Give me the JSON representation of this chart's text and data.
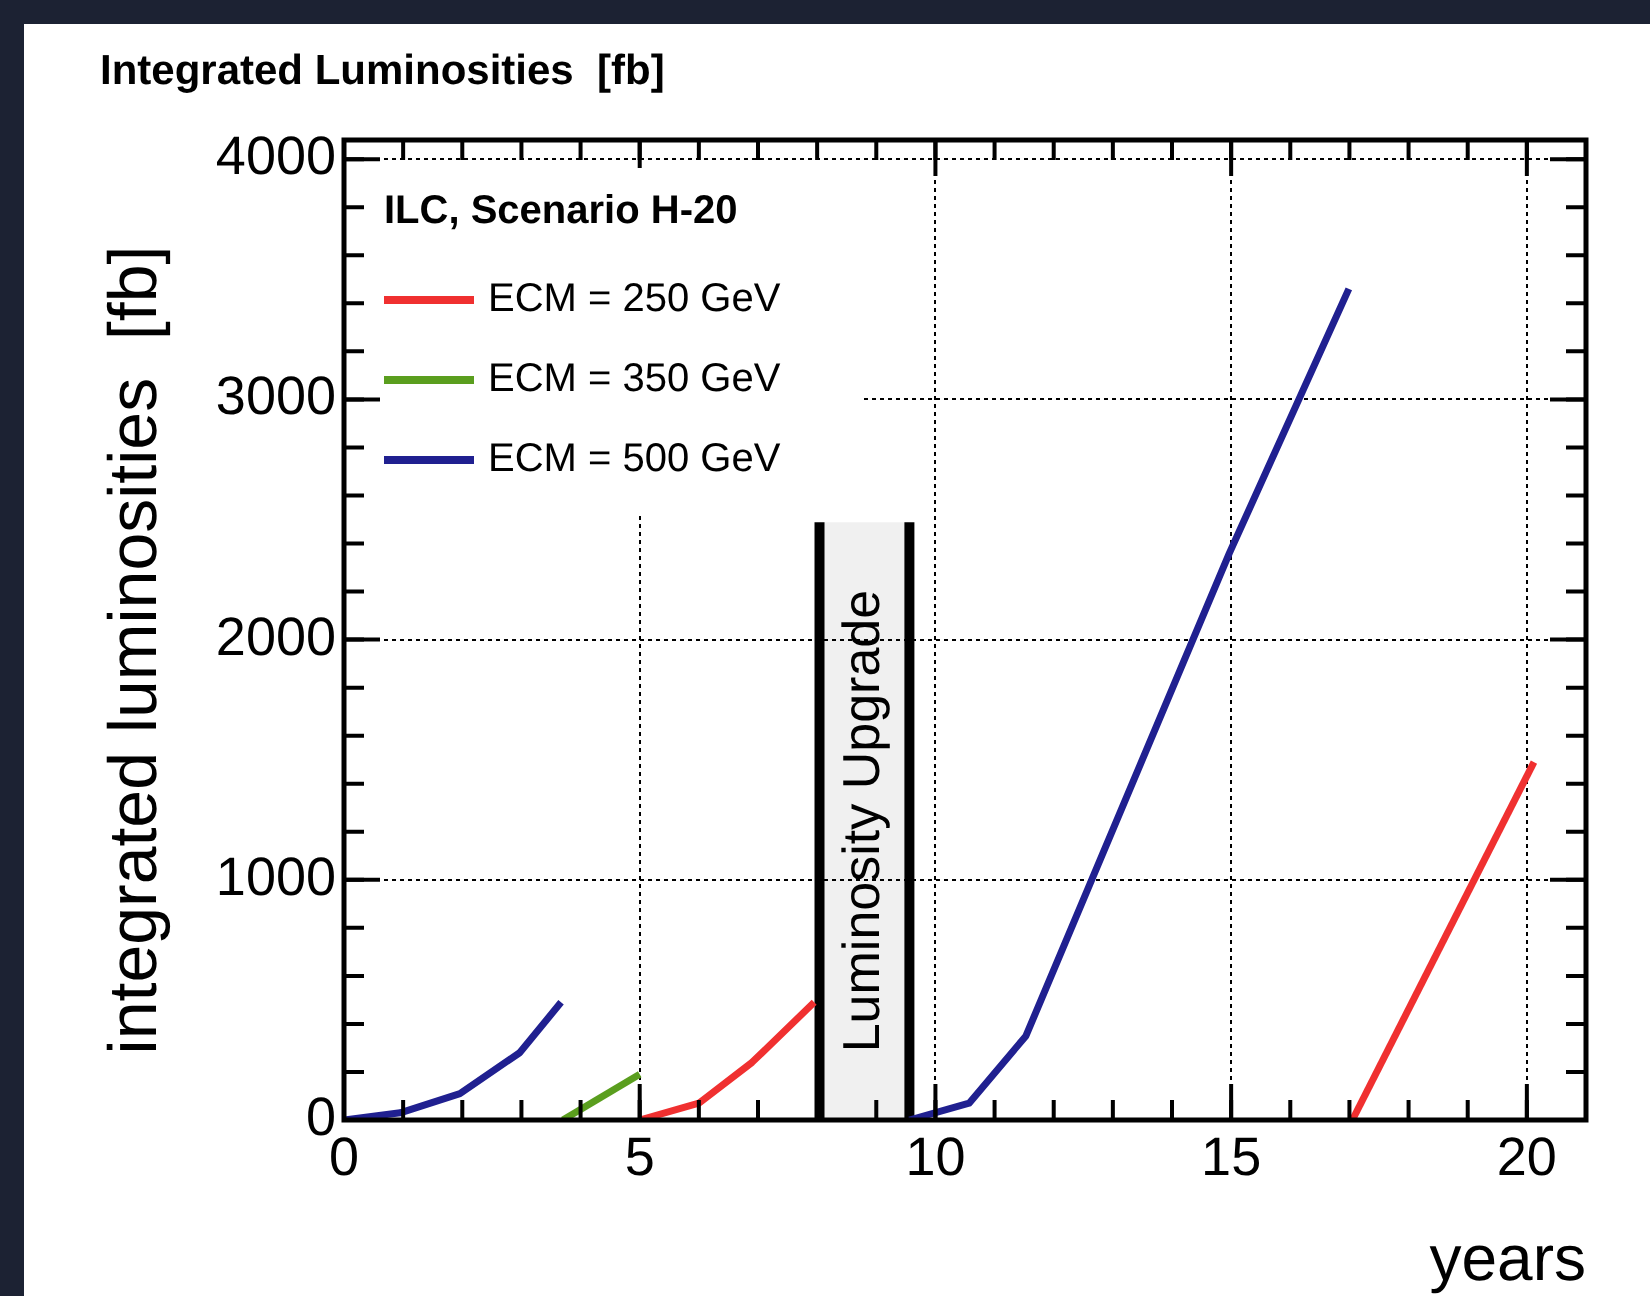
{
  "chart_data": {
    "type": "line",
    "title": "Integrated Luminosities  [fb]",
    "xlabel": "years",
    "ylabel": "integrated luminosities  [fb]",
    "legend_title": "ILC, Scenario H-20",
    "series": [
      {
        "name": "ECM = 250 GeV",
        "color": "#f03030",
        "x": [
          5,
          6,
          6.9,
          7.95
        ],
        "values": [
          0,
          70,
          240,
          490
        ]
      },
      {
        "name": "ECM = 350 GeV",
        "color": "#5a9e1e",
        "x": [
          3.7,
          5
        ],
        "values": [
          0,
          190
        ]
      },
      {
        "name": "ECM = 500 GeV",
        "color": "#202090",
        "x": [
          0,
          0.95,
          1.96,
          2.97,
          3.67
        ],
        "values": [
          0,
          30,
          110,
          280,
          490
        ]
      },
      {
        "color": "#202090",
        "x": [
          9.56,
          10.57,
          11.53,
          14.97,
          16.99
        ],
        "values": [
          0,
          70,
          350,
          2360,
          3460
        ]
      },
      {
        "color": "#f03030",
        "x": [
          17.05,
          20.12
        ],
        "values": [
          0,
          1490
        ]
      }
    ],
    "xlim": [
      0,
      21
    ],
    "xticks": [
      0,
      5,
      10,
      15,
      20
    ],
    "ylim": [
      0,
      4080
    ],
    "yticks": [
      0,
      1000,
      2000,
      3000,
      4000
    ],
    "grid": true,
    "legend": "top left",
    "line_style": "solid",
    "marker": "none",
    "ref_lines": [
      {
        "axis": "x",
        "value": 8.04,
        "color": "#000000"
      },
      {
        "axis": "x",
        "value": 9.56,
        "color": "#000000"
      }
    ],
    "bands": [
      {
        "axis": "x",
        "from": 8.04,
        "to": 9.56,
        "label": "Luminosity Upgrade",
        "color": "#000000"
      }
    ]
  }
}
